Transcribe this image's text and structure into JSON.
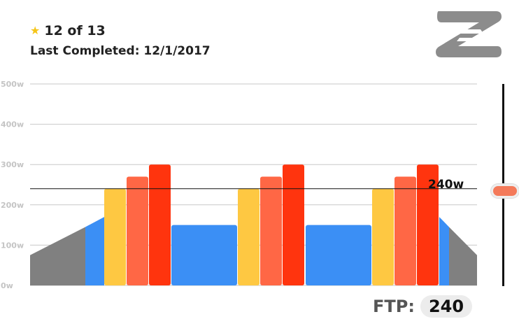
{
  "header": {
    "star_icon": "star-icon",
    "progress": "12 of 13",
    "last_completed": "Last Completed: 12/1/2017"
  },
  "logo": {
    "icon": "zwift-z-logo"
  },
  "chart_data": {
    "type": "bar",
    "ylim": [
      0,
      500
    ],
    "yticks": [
      "0w",
      "100w",
      "200w",
      "300w",
      "400w",
      "500w"
    ],
    "grid": true,
    "threshold_label": "240w",
    "threshold_value": 240,
    "colors": {
      "warmup_ramp": "#808080",
      "recovery": "#3b8ff5",
      "interval_1": "#fec842",
      "interval_2": "#ff6745",
      "interval_3": "#ff340e"
    },
    "segments": [
      {
        "kind": "ramp",
        "start": 75,
        "end": 145,
        "color": "warmup_ramp"
      },
      {
        "kind": "ramp",
        "start": 145,
        "end": 170,
        "color": "recovery"
      },
      {
        "kind": "bar",
        "value": 240,
        "color": "interval_1"
      },
      {
        "kind": "bar",
        "value": 270,
        "color": "interval_2"
      },
      {
        "kind": "bar",
        "value": 300,
        "color": "interval_3"
      },
      {
        "kind": "bar",
        "value": 150,
        "color": "recovery"
      },
      {
        "kind": "bar",
        "value": 240,
        "color": "interval_1"
      },
      {
        "kind": "bar",
        "value": 270,
        "color": "interval_2"
      },
      {
        "kind": "bar",
        "value": 300,
        "color": "interval_3"
      },
      {
        "kind": "bar",
        "value": 150,
        "color": "recovery"
      },
      {
        "kind": "bar",
        "value": 240,
        "color": "interval_1"
      },
      {
        "kind": "bar",
        "value": 270,
        "color": "interval_2"
      },
      {
        "kind": "bar",
        "value": 300,
        "color": "interval_3"
      },
      {
        "kind": "ramp",
        "start": 170,
        "end": 145,
        "color": "recovery"
      },
      {
        "kind": "ramp",
        "start": 145,
        "end": 75,
        "color": "warmup_ramp"
      }
    ]
  },
  "ftp": {
    "label": "FTP:",
    "value": "240"
  },
  "slider": {
    "value": 240
  }
}
